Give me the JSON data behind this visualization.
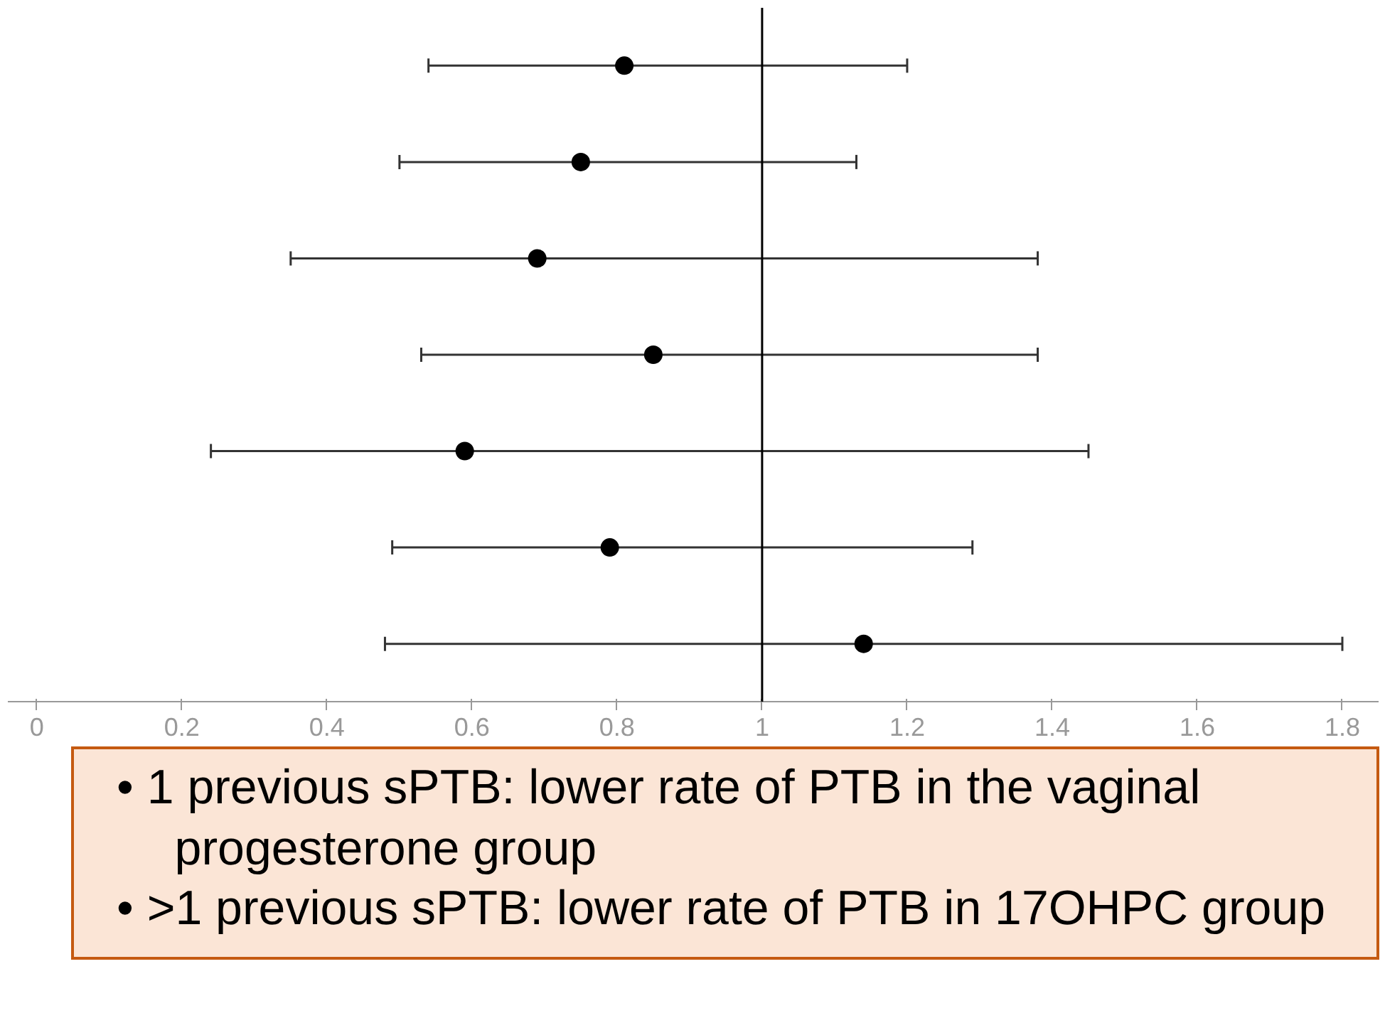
{
  "chart_data": {
    "type": "scatter",
    "orientation": "horizontal",
    "categories": [
      null,
      null,
      null,
      null,
      null,
      null,
      null
    ],
    "values": [
      0.81,
      0.75,
      0.69,
      0.85,
      0.59,
      0.79,
      1.14
    ],
    "errors": [
      [
        0.54,
        1.2
      ],
      [
        0.5,
        1.13
      ],
      [
        0.35,
        1.38
      ],
      [
        0.53,
        1.38
      ],
      [
        0.24,
        1.45
      ],
      [
        0.49,
        1.29
      ],
      [
        0.48,
        1.8
      ]
    ],
    "color": "#000000",
    "marker": "circle",
    "xlim": [
      -0.04,
      1.85
    ],
    "xticks": [
      0,
      0.2,
      0.4,
      0.6,
      0.8,
      1,
      1.2,
      1.4,
      1.6,
      1.8
    ],
    "tick_labels": "x",
    "grid": false,
    "ref_lines": [
      {
        "axis": "x",
        "value": 1,
        "color": "#000000"
      }
    ],
    "annotations": [
      "•  1 previous sPTB: lower rate of PTB in the vaginal progesterone group",
      "•  >1 previous sPTB: lower rate of PTB in 17OHPC group"
    ]
  }
}
